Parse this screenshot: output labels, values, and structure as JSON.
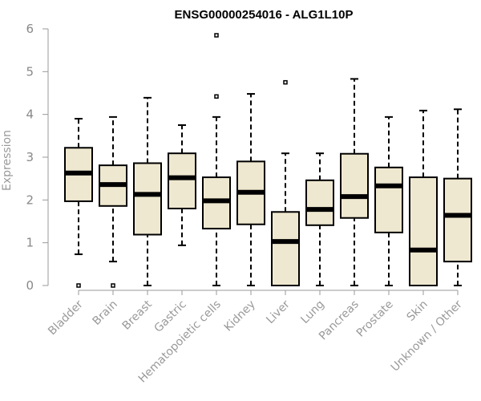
{
  "chart_data": {
    "type": "boxplot",
    "title": "ENSG00000254016 - ALG1L10P",
    "ylabel": "Expression",
    "ylim": [
      0,
      6
    ],
    "yticks": [
      0,
      1,
      2,
      3,
      4,
      5,
      6
    ],
    "grid": false,
    "colors": {
      "box_fill": "#EFE8D0",
      "stroke": "#000000",
      "axis": "#999999"
    },
    "categories": [
      "Bladder",
      "Brain",
      "Breast",
      "Gastric",
      "Hematopoietic cells",
      "Kidney",
      "Liver",
      "Lung",
      "Pancreas",
      "Prostate",
      "Skin",
      "Unknown / Other"
    ],
    "boxes": [
      {
        "min": 0.73,
        "q1": 1.97,
        "median": 2.63,
        "q3": 3.22,
        "max": 3.9,
        "outliers": [
          0.0
        ]
      },
      {
        "min": 0.56,
        "q1": 1.86,
        "median": 2.36,
        "q3": 2.81,
        "max": 3.94,
        "outliers": [
          0.0
        ]
      },
      {
        "min": 0.0,
        "q1": 1.19,
        "median": 2.13,
        "q3": 2.86,
        "max": 4.39,
        "outliers": []
      },
      {
        "min": 0.94,
        "q1": 1.8,
        "median": 2.52,
        "q3": 3.09,
        "max": 3.75,
        "outliers": []
      },
      {
        "min": 0.0,
        "q1": 1.33,
        "median": 1.98,
        "q3": 2.53,
        "max": 3.94,
        "outliers": [
          4.42,
          5.85
        ]
      },
      {
        "min": 0.0,
        "q1": 1.43,
        "median": 2.18,
        "q3": 2.9,
        "max": 4.48,
        "outliers": []
      },
      {
        "min": 0.0,
        "q1": 0.0,
        "median": 1.03,
        "q3": 1.72,
        "max": 3.09,
        "outliers": [
          4.75
        ]
      },
      {
        "min": 0.0,
        "q1": 1.41,
        "median": 1.78,
        "q3": 2.46,
        "max": 3.09,
        "outliers": []
      },
      {
        "min": 0.0,
        "q1": 1.58,
        "median": 2.08,
        "q3": 3.08,
        "max": 4.83,
        "outliers": []
      },
      {
        "min": 0.0,
        "q1": 1.24,
        "median": 2.33,
        "q3": 2.76,
        "max": 3.94,
        "outliers": []
      },
      {
        "min": 0.0,
        "q1": 0.0,
        "median": 0.83,
        "q3": 2.53,
        "max": 4.09,
        "outliers": []
      },
      {
        "min": 0.0,
        "q1": 0.56,
        "median": 1.64,
        "q3": 2.5,
        "max": 4.12,
        "outliers": []
      }
    ]
  }
}
